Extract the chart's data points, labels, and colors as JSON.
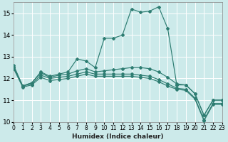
{
  "xlabel": "Humidex (Indice chaleur)",
  "bg_color": "#cceaea",
  "grid_color": "#ffffff",
  "line_color": "#2e7d72",
  "xlim": [
    0,
    23
  ],
  "ylim": [
    10,
    15.5
  ],
  "yticks": [
    10,
    11,
    12,
    13,
    14,
    15
  ],
  "xticks": [
    0,
    1,
    2,
    3,
    4,
    5,
    6,
    7,
    8,
    9,
    10,
    11,
    12,
    13,
    14,
    15,
    16,
    17,
    18,
    19,
    20,
    21,
    22,
    23
  ],
  "series": [
    [
      12.6,
      11.65,
      11.8,
      12.3,
      12.1,
      12.2,
      12.3,
      12.9,
      12.8,
      12.5,
      13.85,
      13.85,
      14.0,
      15.2,
      15.05,
      15.1,
      15.3,
      14.3,
      11.7,
      11.7,
      11.3,
      10.3,
      11.0,
      11.0
    ],
    [
      12.55,
      11.65,
      11.8,
      12.25,
      12.05,
      12.15,
      12.2,
      12.35,
      12.45,
      12.3,
      12.35,
      12.4,
      12.45,
      12.5,
      12.5,
      12.45,
      12.3,
      12.05,
      11.75,
      11.7,
      11.3,
      10.3,
      11.0,
      11.0
    ],
    [
      12.5,
      11.65,
      11.75,
      12.15,
      12.0,
      12.05,
      12.1,
      12.2,
      12.3,
      12.2,
      12.2,
      12.2,
      12.2,
      12.2,
      12.15,
      12.1,
      11.95,
      11.75,
      11.55,
      11.5,
      11.1,
      10.1,
      10.85,
      10.85
    ],
    [
      12.45,
      11.6,
      11.7,
      12.05,
      11.9,
      11.95,
      12.0,
      12.1,
      12.2,
      12.1,
      12.1,
      12.1,
      12.1,
      12.1,
      12.05,
      12.0,
      11.85,
      11.65,
      11.5,
      11.45,
      11.05,
      10.05,
      10.8,
      10.8
    ]
  ]
}
